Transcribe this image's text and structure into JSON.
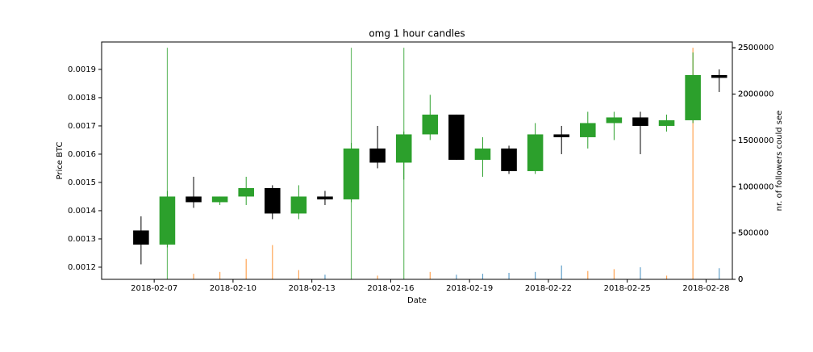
{
  "chart_data": {
    "type": "candlestick",
    "title": "omg 1 hour candles",
    "x_label": "Date",
    "y_label": "Price BTC",
    "y2_label": "nr. of followers could see",
    "x": [
      "2018-02-06",
      "2018-02-07",
      "2018-02-08",
      "2018-02-09",
      "2018-02-10",
      "2018-02-11",
      "2018-02-12",
      "2018-02-13",
      "2018-02-14",
      "2018-02-15",
      "2018-02-16",
      "2018-02-17",
      "2018-02-18",
      "2018-02-19",
      "2018-02-20",
      "2018-02-21",
      "2018-02-22",
      "2018-02-23",
      "2018-02-24",
      "2018-02-25",
      "2018-02-26",
      "2018-02-27",
      "2018-02-28"
    ],
    "open": [
      0.00133,
      0.00128,
      0.00145,
      0.00143,
      0.00145,
      0.00148,
      0.00139,
      0.00145,
      0.00144,
      0.00162,
      0.00157,
      0.00167,
      0.00174,
      0.00158,
      0.00162,
      0.00154,
      0.00167,
      0.00166,
      0.00171,
      0.00173,
      0.0017,
      0.00172,
      0.00188
    ],
    "high": [
      0.00138,
      0.00147,
      0.00152,
      0.00145,
      0.00152,
      0.00149,
      0.00149,
      0.00147,
      0.00164,
      0.0017,
      0.00168,
      0.00181,
      0.00174,
      0.00166,
      0.00163,
      0.00171,
      0.0017,
      0.00175,
      0.00175,
      0.00175,
      0.00174,
      0.00196,
      0.0019
    ],
    "low": [
      0.00121,
      0.00127,
      0.00141,
      0.00142,
      0.00142,
      0.00137,
      0.00137,
      0.00142,
      0.00143,
      0.00155,
      0.00151,
      0.00165,
      0.00158,
      0.00152,
      0.00153,
      0.00153,
      0.0016,
      0.00162,
      0.00165,
      0.0016,
      0.00168,
      0.00171,
      0.00182
    ],
    "close": [
      0.00128,
      0.00145,
      0.00143,
      0.00145,
      0.00148,
      0.00139,
      0.00145,
      0.00144,
      0.00162,
      0.00157,
      0.00167,
      0.00174,
      0.00158,
      0.00162,
      0.00154,
      0.00167,
      0.00166,
      0.00171,
      0.00173,
      0.0017,
      0.00172,
      0.00188,
      0.00187
    ],
    "up_color": "#2ca02c",
    "down_color": "#000000",
    "followers": [
      0,
      2500000,
      60000,
      80000,
      220000,
      370000,
      100000,
      50000,
      2500000,
      40000,
      2500000,
      80000,
      50000,
      60000,
      70000,
      80000,
      150000,
      90000,
      110000,
      130000,
      40000,
      2500000,
      120000
    ],
    "follower_colors": [
      "#1f77b4",
      "#2ca02c",
      "#ff7f0e",
      "#ff7f0e",
      "#ff7f0e",
      "#ff7f0e",
      "#ff7f0e",
      "#1f77b4",
      "#2ca02c",
      "#ff7f0e",
      "#2ca02c",
      "#ff7f0e",
      "#1f77b4",
      "#1f77b4",
      "#1f77b4",
      "#1f77b4",
      "#1f77b4",
      "#ff7f0e",
      "#ff7f0e",
      "#1f77b4",
      "#ff7f0e",
      "#ff7f0e",
      "#1f77b4"
    ],
    "xlim": [
      "2018-02-05",
      "2018-03-01"
    ],
    "xticks": [
      "2018-02-07",
      "2018-02-10",
      "2018-02-13",
      "2018-02-16",
      "2018-02-19",
      "2018-02-22",
      "2018-02-25",
      "2018-02-28"
    ],
    "ylim": [
      0.001157,
      0.001997
    ],
    "yticks": [
      0.0012,
      0.0013,
      0.0014,
      0.0015,
      0.0016,
      0.0017,
      0.0018,
      0.0019
    ],
    "y2lim": [
      0,
      2562500
    ],
    "y2ticks": [
      0,
      500000,
      1000000,
      1500000,
      2000000,
      2500000
    ],
    "y3lim": [
      0,
      256.25
    ],
    "y3ticks": [
      0,
      50,
      100,
      150,
      200,
      250
    ]
  }
}
